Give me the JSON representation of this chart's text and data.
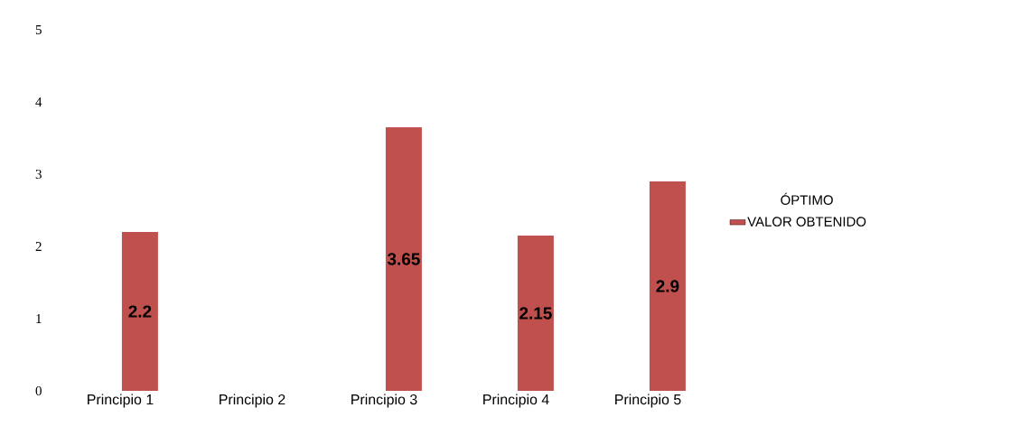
{
  "chart_data": {
    "type": "bar",
    "categories": [
      "Principio 1",
      "Principio 2",
      "Principio 3",
      "Principio 4",
      "Principio 5"
    ],
    "series": [
      {
        "name": "ÓPTIMO",
        "values": [
          null,
          null,
          null,
          null,
          null
        ]
      },
      {
        "name": "VALOR OBTENIDO",
        "color": "#c0504d",
        "values": [
          2.2,
          null,
          3.65,
          2.15,
          2.9
        ],
        "value_labels": [
          "2.2",
          null,
          "3.65",
          "2.15",
          "2.9"
        ]
      }
    ],
    "ylim": [
      0,
      5
    ],
    "yticks": [
      0,
      1,
      2,
      3,
      4,
      5
    ],
    "grid": false,
    "legend": "right"
  }
}
